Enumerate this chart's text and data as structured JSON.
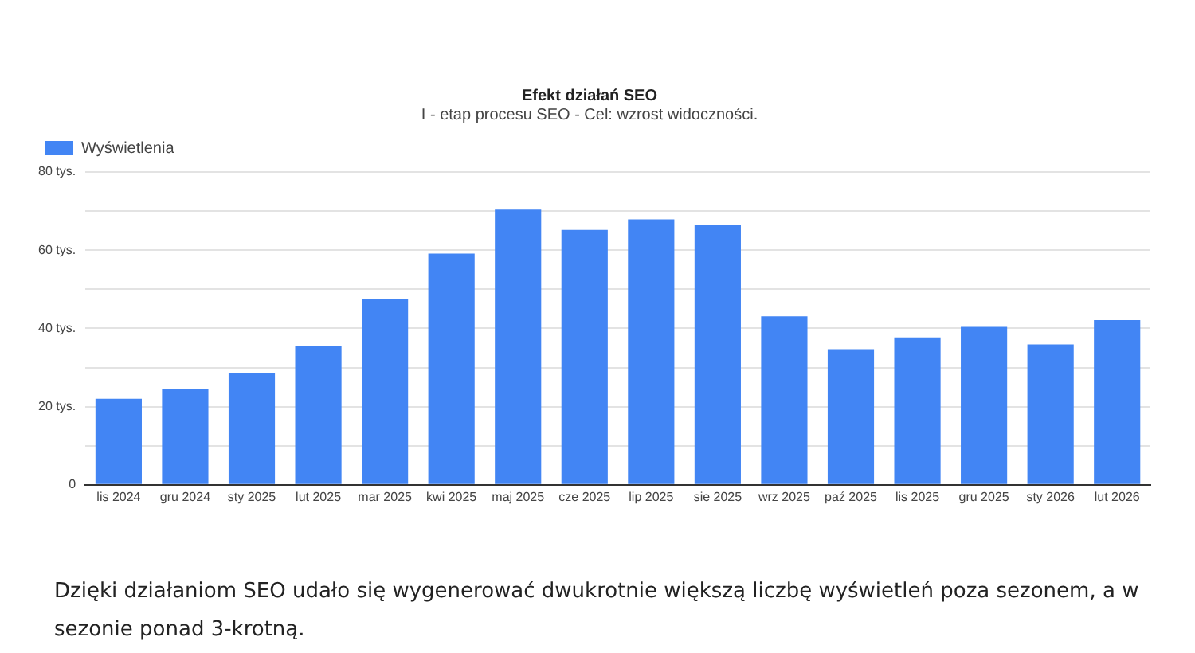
{
  "chart_data": {
    "type": "bar",
    "title": "Efekt działań SEO",
    "subtitle": "I - etap procesu SEO - Cel: wzrost widoczności.",
    "categories": [
      "lis 2024",
      "gru 2024",
      "sty 2025",
      "lut 2025",
      "mar 2025",
      "kwi 2025",
      "maj 2025",
      "cze 2025",
      "lip 2025",
      "sie 2025",
      "wrz 2025",
      "paź 2025",
      "lis 2025",
      "gru 2025",
      "sty 2026",
      "lut 2026"
    ],
    "series": [
      {
        "name": "Wyświetlenia",
        "color": "#4285f4",
        "values": [
          22,
          24.4,
          28.7,
          35.5,
          47.4,
          59.1,
          70.4,
          65.2,
          67.9,
          66.5,
          43.1,
          34.7,
          37.7,
          40.4,
          35.9,
          42.1
        ]
      }
    ],
    "ylim": [
      0,
      80
    ],
    "yticks": [
      {
        "value": 0,
        "label": "0"
      },
      {
        "value": 10,
        "label": null
      },
      {
        "value": 20,
        "label": "20 tys."
      },
      {
        "value": 30,
        "label": null
      },
      {
        "value": 40,
        "label": "40 tys."
      },
      {
        "value": 50,
        "label": null
      },
      {
        "value": 60,
        "label": "60 tys."
      },
      {
        "value": 70,
        "label": null
      },
      {
        "value": 80,
        "label": "80 tys."
      }
    ],
    "grid": "y",
    "legend": "top left",
    "annotations": [
      "Dzięki działaniom SEO udało się wygenerować dwukrotnie większą liczbę wyświetleń poza sezonem, a w sezonie ponad 3-krotną."
    ]
  }
}
